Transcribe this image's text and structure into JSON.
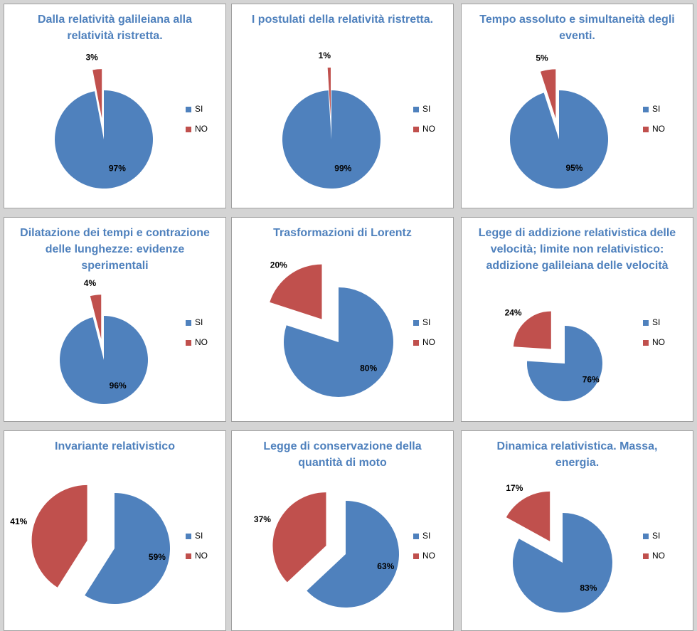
{
  "chart_data": [
    {
      "type": "pie",
      "title": "Dalla relatività galileiana alla relatività ristretta.",
      "categories": [
        "SI",
        "NO"
      ],
      "values": [
        97,
        3
      ],
      "value_labels": [
        "97%",
        "3%"
      ],
      "colors": [
        "#4f81bd",
        "#c0504d"
      ],
      "legend": "right"
    },
    {
      "type": "pie",
      "title": "I postulati della relatività ristretta.",
      "categories": [
        "SI",
        "NO"
      ],
      "values": [
        99,
        1
      ],
      "value_labels": [
        "99%",
        "1%"
      ],
      "colors": [
        "#4f81bd",
        "#c0504d"
      ],
      "legend": "right"
    },
    {
      "type": "pie",
      "title": "Tempo assoluto e simultaneità degli eventi.",
      "categories": [
        "SI",
        "NO"
      ],
      "values": [
        95,
        5
      ],
      "value_labels": [
        "95%",
        "5%"
      ],
      "colors": [
        "#4f81bd",
        "#c0504d"
      ],
      "legend": "right"
    },
    {
      "type": "pie",
      "title": "Dilatazione dei tempi e contrazione delle lunghezze: evidenze sperimentali",
      "categories": [
        "SI",
        "NO"
      ],
      "values": [
        96,
        4
      ],
      "value_labels": [
        "96%",
        "4%"
      ],
      "colors": [
        "#4f81bd",
        "#c0504d"
      ],
      "legend": "right"
    },
    {
      "type": "pie",
      "title": "Trasformazioni di Lorentz",
      "categories": [
        "SI",
        "NO"
      ],
      "values": [
        80,
        20
      ],
      "value_labels": [
        "80%",
        "20%"
      ],
      "colors": [
        "#4f81bd",
        "#c0504d"
      ],
      "legend": "right"
    },
    {
      "type": "pie",
      "title": "Legge di addizione relativistica delle velocità; limite non relativistico: addizione galileiana delle velocità",
      "categories": [
        "SI",
        "NO"
      ],
      "values": [
        76,
        24
      ],
      "value_labels": [
        "76%",
        "24%"
      ],
      "colors": [
        "#4f81bd",
        "#c0504d"
      ],
      "legend": "right"
    },
    {
      "type": "pie",
      "title": "Invariante relativistico",
      "categories": [
        "SI",
        "NO"
      ],
      "values": [
        59,
        41
      ],
      "value_labels": [
        "59%",
        "41%"
      ],
      "colors": [
        "#4f81bd",
        "#c0504d"
      ],
      "legend": "right"
    },
    {
      "type": "pie",
      "title": "Legge di conservazione della quantità di moto",
      "categories": [
        "SI",
        "NO"
      ],
      "values": [
        63,
        37
      ],
      "value_labels": [
        "63%",
        "37%"
      ],
      "colors": [
        "#4f81bd",
        "#c0504d"
      ],
      "legend": "right"
    },
    {
      "type": "pie",
      "title": "Dinamica relativistica. Massa, energia.",
      "categories": [
        "SI",
        "NO"
      ],
      "values": [
        83,
        17
      ],
      "value_labels": [
        "83%",
        "17%"
      ],
      "colors": [
        "#4f81bd",
        "#c0504d"
      ],
      "legend": "right"
    }
  ]
}
